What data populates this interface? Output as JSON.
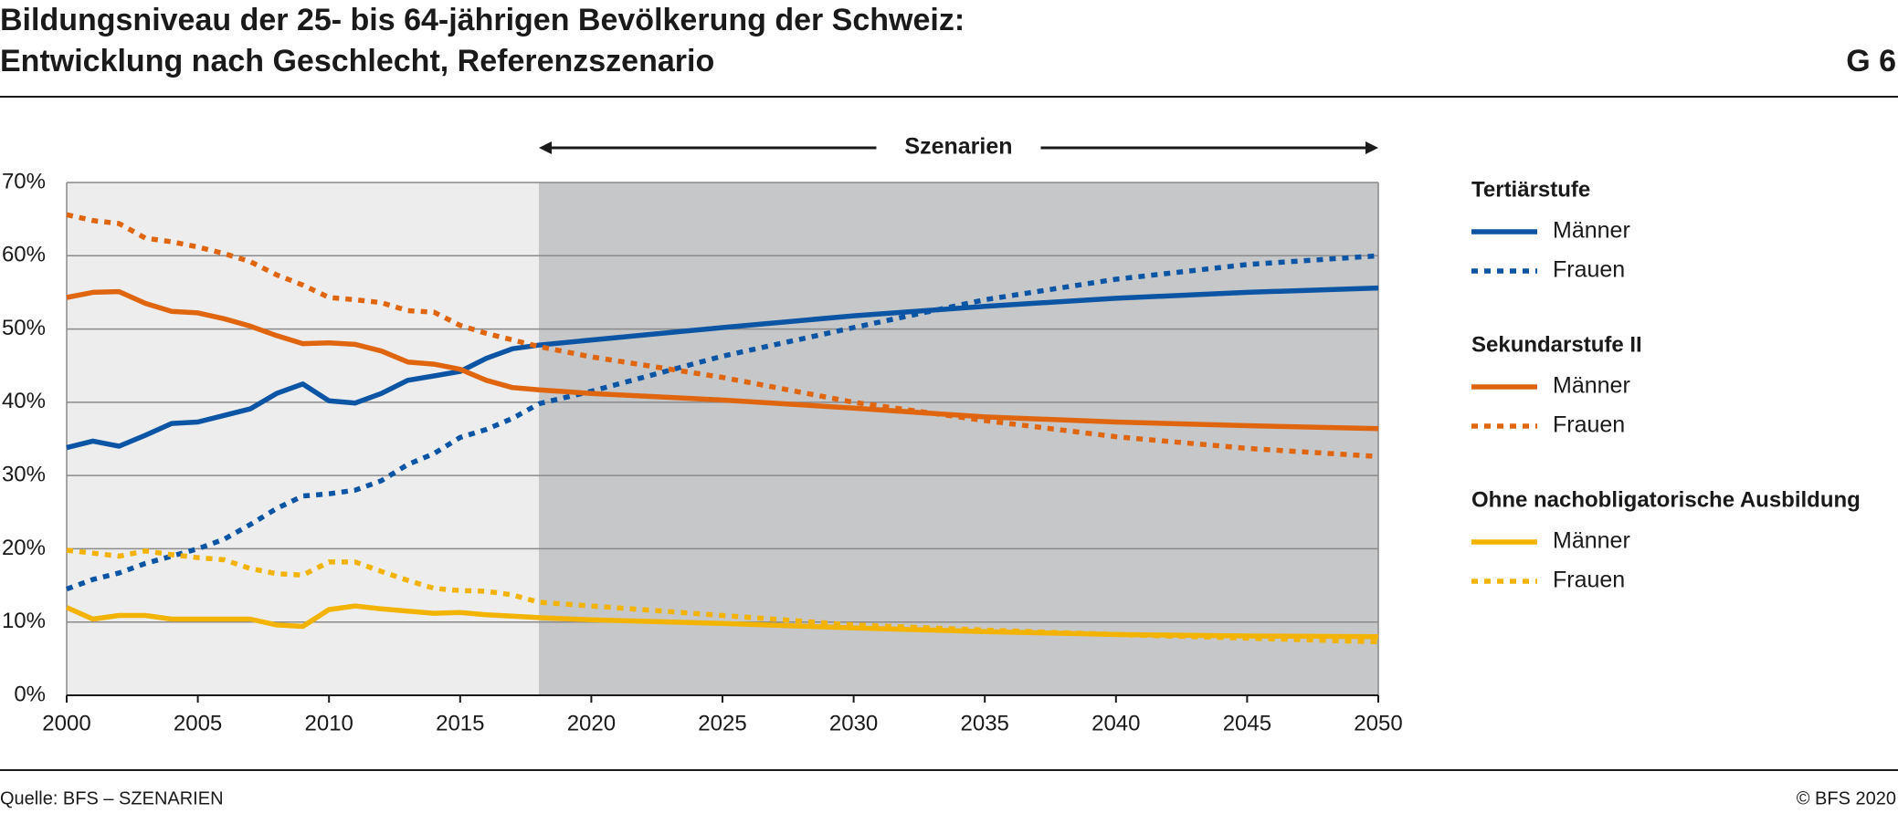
{
  "title": [
    "Bildungsniveau der 25- bis 64-jährigen Bevölkerung der Schweiz:",
    "Entwicklung nach Geschlecht, Referenzszenario"
  ],
  "figure_number": "G 6",
  "source": "Quelle: BFS – SZENARIEN",
  "copyright": "© BFS 2020",
  "chart_data": {
    "type": "line",
    "x": [
      2000,
      2001,
      2002,
      2003,
      2004,
      2005,
      2006,
      2007,
      2008,
      2009,
      2010,
      2011,
      2012,
      2013,
      2014,
      2015,
      2016,
      2017,
      2018,
      2020,
      2025,
      2030,
      2035,
      2040,
      2045,
      2050
    ],
    "xlim": [
      2000,
      2050
    ],
    "xticks": [
      2000,
      2005,
      2010,
      2015,
      2020,
      2025,
      2030,
      2035,
      2040,
      2045,
      2050
    ],
    "ylim": [
      0,
      70
    ],
    "yticks": [
      {
        "value": 0,
        "label": "0%"
      },
      {
        "value": 10,
        "label": "10%"
      },
      {
        "value": 20,
        "label": "20%"
      },
      {
        "value": 30,
        "label": "30%"
      },
      {
        "value": 40,
        "label": "40%"
      },
      {
        "value": 50,
        "label": "50%"
      },
      {
        "value": 60,
        "label": "60%"
      },
      {
        "value": 70,
        "label": "70%"
      }
    ],
    "grid": true,
    "scenario": {
      "label": "Szenarien",
      "start": 2018
    },
    "groups": [
      {
        "title": "Tertiärstufe",
        "series": [
          {
            "name": "Männer",
            "color": "#0b55a4",
            "dashed": false,
            "values": [
              33.8,
              34.7,
              34.0,
              35.5,
              37.1,
              37.3,
              38.2,
              39.1,
              41.2,
              42.5,
              40.2,
              39.9,
              41.2,
              43.0,
              43.6,
              44.2,
              46.0,
              47.3,
              47.8,
              48.5,
              50.2,
              51.8,
              53.1,
              54.2,
              55.0,
              55.6
            ]
          },
          {
            "name": "Frauen",
            "color": "#0b55a4",
            "dashed": true,
            "values": [
              14.5,
              15.8,
              16.7,
              18.0,
              19.0,
              20.0,
              21.3,
              23.3,
              25.5,
              27.2,
              27.5,
              28.0,
              29.3,
              31.5,
              33.0,
              35.2,
              36.3,
              37.8,
              39.8,
              41.5,
              46.3,
              50.2,
              54.0,
              56.8,
              58.8,
              60.0
            ]
          }
        ]
      },
      {
        "title": "Sekundarstufe II",
        "series": [
          {
            "name": "Männer",
            "color": "#e0650f",
            "dashed": false,
            "values": [
              54.3,
              55.0,
              55.1,
              53.5,
              52.4,
              52.2,
              51.4,
              50.4,
              49.1,
              48.0,
              48.1,
              47.9,
              47.0,
              45.5,
              45.2,
              44.5,
              43.0,
              42.0,
              41.7,
              41.2,
              40.3,
              39.2,
              38.0,
              37.3,
              36.8,
              36.4
            ]
          },
          {
            "name": "Frauen",
            "color": "#e0650f",
            "dashed": true,
            "values": [
              65.6,
              64.8,
              64.4,
              62.4,
              61.9,
              61.2,
              60.3,
              59.2,
              57.4,
              56.0,
              54.3,
              54.0,
              53.6,
              52.5,
              52.3,
              50.5,
              49.4,
              48.5,
              47.6,
              46.2,
              43.4,
              40.0,
              37.5,
              35.3,
              33.7,
              32.6
            ]
          }
        ]
      },
      {
        "title": "Ohne nachobligatorische Ausbildung",
        "series": [
          {
            "name": "Männer",
            "color": "#f2b400",
            "dashed": false,
            "values": [
              12.0,
              10.4,
              10.9,
              10.9,
              10.4,
              10.4,
              10.4,
              10.4,
              9.6,
              9.4,
              11.7,
              12.2,
              11.8,
              11.5,
              11.2,
              11.3,
              11.0,
              10.8,
              10.6,
              10.3,
              9.8,
              9.2,
              8.7,
              8.3,
              8.1,
              8.0
            ]
          },
          {
            "name": "Frauen",
            "color": "#f2b400",
            "dashed": true,
            "values": [
              19.8,
              19.4,
              19.0,
              19.7,
              19.2,
              18.8,
              18.5,
              17.3,
              16.6,
              16.4,
              18.2,
              18.2,
              16.9,
              15.7,
              14.6,
              14.3,
              14.2,
              13.7,
              12.7,
              12.2,
              10.9,
              9.6,
              8.9,
              8.3,
              7.8,
              7.3
            ]
          }
        ]
      }
    ]
  }
}
